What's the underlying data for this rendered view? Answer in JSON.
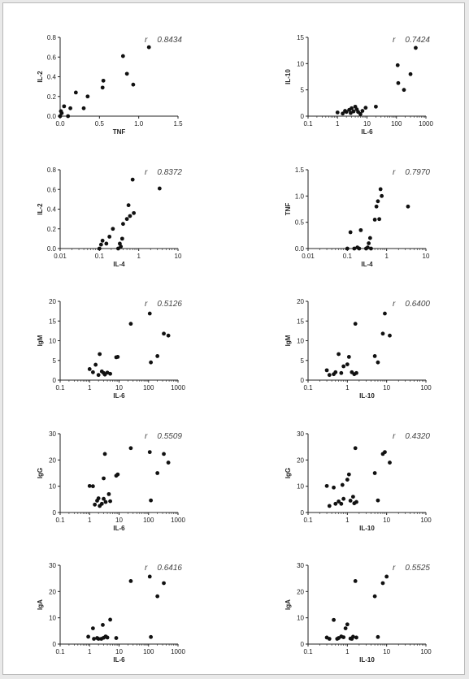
{
  "colors": {
    "frame_border": "#b9b9b9",
    "point": "#111111",
    "axis": "#222222"
  },
  "chart_data": [
    {
      "type": "scatter",
      "xlabel": "TNF",
      "ylabel": "IL-2",
      "xscale": "linear",
      "xlim": [
        0,
        1.5
      ],
      "ylim": [
        0,
        0.8
      ],
      "xticks": [
        "0.0",
        "0.5",
        "1.0",
        "1.5"
      ],
      "yticks": [
        "0.0",
        "0.2",
        "0.4",
        "0.6",
        "0.8"
      ],
      "yticks_values": [
        0,
        0.2,
        0.4,
        0.6,
        0.8
      ],
      "xticks_values": [
        0,
        0.5,
        1.0,
        1.5
      ],
      "r_label": "r",
      "r_value": "0.8434",
      "points": [
        [
          0.0,
          0.0
        ],
        [
          0.01,
          0.05
        ],
        [
          0.02,
          0.03
        ],
        [
          0.05,
          0.1
        ],
        [
          0.1,
          0.0
        ],
        [
          0.13,
          0.08
        ],
        [
          0.2,
          0.24
        ],
        [
          0.3,
          0.08
        ],
        [
          0.35,
          0.2
        ],
        [
          0.54,
          0.29
        ],
        [
          0.55,
          0.36
        ],
        [
          0.8,
          0.61
        ],
        [
          0.85,
          0.43
        ],
        [
          0.93,
          0.32
        ],
        [
          1.13,
          0.7
        ]
      ]
    },
    {
      "type": "scatter",
      "xlabel": "IL-6",
      "ylabel": "IL-10",
      "xscale": "log",
      "xlim": [
        0.1,
        1000
      ],
      "ylim": [
        0,
        15
      ],
      "xticks": [
        "0.1",
        "1",
        "10",
        "100",
        "1000"
      ],
      "yticks": [
        "0",
        "5",
        "10",
        "15"
      ],
      "yticks_values": [
        0,
        5,
        10,
        15
      ],
      "xticks_values": [
        0.1,
        1,
        10,
        100,
        1000
      ],
      "r_label": "r",
      "r_value": "0.7424",
      "points": [
        [
          1,
          0.7
        ],
        [
          1.5,
          0.5
        ],
        [
          1.8,
          1.0
        ],
        [
          2,
          0.8
        ],
        [
          2.5,
          1.2
        ],
        [
          2.8,
          0.6
        ],
        [
          3,
          1.5
        ],
        [
          3.5,
          0.9
        ],
        [
          4,
          1.8
        ],
        [
          4.5,
          1.3
        ],
        [
          5,
          0.8
        ],
        [
          6,
          0.4
        ],
        [
          7,
          1.0
        ],
        [
          9,
          1.6
        ],
        [
          20,
          1.8
        ],
        [
          110,
          9.7
        ],
        [
          115,
          6.3
        ],
        [
          180,
          5.0
        ],
        [
          300,
          8.0
        ],
        [
          450,
          13.0
        ]
      ]
    },
    {
      "type": "scatter",
      "xlabel": "IL-4",
      "ylabel": "IL-2",
      "xscale": "log",
      "xlim": [
        0.01,
        10
      ],
      "ylim": [
        0,
        0.8
      ],
      "xticks": [
        "0.01",
        "0.1",
        "1",
        "10"
      ],
      "yticks": [
        "0.0",
        "0.2",
        "0.4",
        "0.6",
        "0.8"
      ],
      "yticks_values": [
        0,
        0.2,
        0.4,
        0.6,
        0.8
      ],
      "xticks_values": [
        0.01,
        0.1,
        1,
        10
      ],
      "r_label": "r",
      "r_value": "0.8372",
      "points": [
        [
          0.1,
          0.0
        ],
        [
          0.11,
          0.04
        ],
        [
          0.12,
          0.08
        ],
        [
          0.15,
          0.05
        ],
        [
          0.18,
          0.12
        ],
        [
          0.22,
          0.2
        ],
        [
          0.3,
          0.0
        ],
        [
          0.33,
          0.05
        ],
        [
          0.35,
          0.02
        ],
        [
          0.38,
          0.1
        ],
        [
          0.4,
          0.25
        ],
        [
          0.5,
          0.3
        ],
        [
          0.55,
          0.44
        ],
        [
          0.6,
          0.33
        ],
        [
          0.7,
          0.7
        ],
        [
          0.75,
          0.36
        ],
        [
          3.4,
          0.61
        ]
      ]
    },
    {
      "type": "scatter",
      "xlabel": "IL-4",
      "ylabel": "TNF",
      "xscale": "log",
      "xlim": [
        0.01,
        10
      ],
      "ylim": [
        0,
        1.5
      ],
      "xticks": [
        "0.01",
        "0.1",
        "1",
        "10"
      ],
      "yticks": [
        "0.0",
        "0.5",
        "1.0",
        "1.5"
      ],
      "yticks_values": [
        0,
        0.5,
        1.0,
        1.5
      ],
      "xticks_values": [
        0.01,
        0.1,
        1,
        10
      ],
      "r_label": "r",
      "r_value": "0.7970",
      "points": [
        [
          0.1,
          0.0
        ],
        [
          0.12,
          0.31
        ],
        [
          0.15,
          0.0
        ],
        [
          0.18,
          0.02
        ],
        [
          0.2,
          0.0
        ],
        [
          0.22,
          0.35
        ],
        [
          0.3,
          0.0
        ],
        [
          0.33,
          0.02
        ],
        [
          0.35,
          0.1
        ],
        [
          0.38,
          0.2
        ],
        [
          0.4,
          0.0
        ],
        [
          0.5,
          0.55
        ],
        [
          0.55,
          0.8
        ],
        [
          0.6,
          0.9
        ],
        [
          0.65,
          0.56
        ],
        [
          0.7,
          1.13
        ],
        [
          0.75,
          1.0
        ],
        [
          3.5,
          0.8
        ]
      ]
    },
    {
      "type": "scatter",
      "xlabel": "IL-6",
      "ylabel": "IgM",
      "xscale": "log",
      "xlim": [
        0.1,
        1000
      ],
      "ylim": [
        0,
        20
      ],
      "xticks": [
        "0.1",
        "1",
        "10",
        "100",
        "1000"
      ],
      "yticks": [
        "0",
        "5",
        "10",
        "15",
        "20"
      ],
      "yticks_values": [
        0,
        5,
        10,
        15,
        20
      ],
      "xticks_values": [
        0.1,
        1,
        10,
        100,
        1000
      ],
      "r_label": "r",
      "r_value": "0.5126",
      "points": [
        [
          1,
          2.8
        ],
        [
          1.3,
          2.0
        ],
        [
          1.6,
          3.9
        ],
        [
          2,
          1.3
        ],
        [
          2.2,
          6.6
        ],
        [
          2.6,
          2.2
        ],
        [
          3,
          1.8
        ],
        [
          3.3,
          1.4
        ],
        [
          4,
          1.9
        ],
        [
          5,
          1.6
        ],
        [
          8,
          5.8
        ],
        [
          9,
          5.9
        ],
        [
          25,
          14.3
        ],
        [
          110,
          16.9
        ],
        [
          120,
          4.5
        ],
        [
          200,
          6.1
        ],
        [
          330,
          11.8
        ],
        [
          470,
          11.3
        ]
      ]
    },
    {
      "type": "scatter",
      "xlabel": "IL-10",
      "ylabel": "IgM",
      "xscale": "log",
      "xlim": [
        0.1,
        100
      ],
      "ylim": [
        0,
        20
      ],
      "xticks": [
        "0.1",
        "1",
        "10",
        "100"
      ],
      "yticks": [
        "0",
        "5",
        "10",
        "15",
        "20"
      ],
      "yticks_values": [
        0,
        5,
        10,
        15,
        20
      ],
      "xticks_values": [
        0.1,
        1,
        10,
        100
      ],
      "r_label": "r",
      "r_value": "0.6400",
      "points": [
        [
          0.3,
          2.5
        ],
        [
          0.35,
          1.3
        ],
        [
          0.45,
          1.5
        ],
        [
          0.5,
          2.0
        ],
        [
          0.6,
          6.6
        ],
        [
          0.7,
          1.8
        ],
        [
          0.8,
          3.5
        ],
        [
          1,
          4.0
        ],
        [
          1.1,
          5.9
        ],
        [
          1.3,
          2.0
        ],
        [
          1.5,
          1.5
        ],
        [
          1.6,
          14.3
        ],
        [
          1.7,
          1.8
        ],
        [
          5,
          6.1
        ],
        [
          6,
          4.5
        ],
        [
          8,
          11.8
        ],
        [
          9,
          16.9
        ],
        [
          12,
          11.3
        ]
      ]
    },
    {
      "type": "scatter",
      "xlabel": "IL-6",
      "ylabel": "IgG",
      "xscale": "log",
      "xlim": [
        0.1,
        1000
      ],
      "ylim": [
        0,
        30
      ],
      "xticks": [
        "0.1",
        "1",
        "10",
        "100",
        "1000"
      ],
      "yticks": [
        "0",
        "10",
        "20",
        "30"
      ],
      "yticks_values": [
        0,
        10,
        20,
        30
      ],
      "xticks_values": [
        0.1,
        1,
        10,
        100,
        1000
      ],
      "r_label": "r",
      "r_value": "0.5509",
      "points": [
        [
          1,
          10.1
        ],
        [
          1.3,
          10.0
        ],
        [
          1.5,
          3.0
        ],
        [
          1.8,
          4.5
        ],
        [
          2,
          5.4
        ],
        [
          2.2,
          2.5
        ],
        [
          2.6,
          3.3
        ],
        [
          3,
          5.2
        ],
        [
          3,
          13.0
        ],
        [
          3.3,
          22.3
        ],
        [
          3.5,
          4.0
        ],
        [
          4.5,
          7.0
        ],
        [
          5,
          4.3
        ],
        [
          8,
          14.0
        ],
        [
          9,
          14.5
        ],
        [
          25,
          24.5
        ],
        [
          110,
          23.0
        ],
        [
          120,
          4.6
        ],
        [
          200,
          15.0
        ],
        [
          330,
          22.3
        ],
        [
          470,
          19.0
        ]
      ]
    },
    {
      "type": "scatter",
      "xlabel": "IL-10",
      "ylabel": "IgG",
      "xscale": "log",
      "xlim": [
        0.1,
        100
      ],
      "ylim": [
        0,
        30
      ],
      "xticks": [
        "0.1",
        "1",
        "10",
        "100"
      ],
      "yticks": [
        "0",
        "10",
        "20",
        "30"
      ],
      "yticks_values": [
        0,
        10,
        20,
        30
      ],
      "xticks_values": [
        0.1,
        1,
        10,
        100
      ],
      "r_label": "r",
      "r_value": "0.4320",
      "points": [
        [
          0.3,
          10.1
        ],
        [
          0.35,
          2.5
        ],
        [
          0.45,
          9.5
        ],
        [
          0.5,
          3.3
        ],
        [
          0.6,
          4.2
        ],
        [
          0.7,
          3.3
        ],
        [
          0.75,
          10.5
        ],
        [
          0.8,
          5.2
        ],
        [
          1,
          12.5
        ],
        [
          1.1,
          14.5
        ],
        [
          1.2,
          4.5
        ],
        [
          1.4,
          6.0
        ],
        [
          1.5,
          3.5
        ],
        [
          1.6,
          24.5
        ],
        [
          1.7,
          4.0
        ],
        [
          5,
          15.0
        ],
        [
          6,
          4.6
        ],
        [
          8,
          22.3
        ],
        [
          9,
          23.0
        ],
        [
          12,
          19.0
        ]
      ]
    },
    {
      "type": "scatter",
      "xlabel": "IL-6",
      "ylabel": "IgA",
      "xscale": "log",
      "xlim": [
        0.1,
        1000
      ],
      "ylim": [
        0,
        30
      ],
      "xticks": [
        "0.1",
        "1",
        "10",
        "100",
        "1000"
      ],
      "yticks": [
        "0",
        "10",
        "20",
        "30"
      ],
      "yticks_values": [
        0,
        10,
        20,
        30
      ],
      "xticks_values": [
        0.1,
        1,
        10,
        100,
        1000
      ],
      "r_label": "r",
      "r_value": "0.6416",
      "points": [
        [
          0.9,
          2.8
        ],
        [
          1.3,
          6.0
        ],
        [
          1.4,
          2.0
        ],
        [
          1.8,
          2.3
        ],
        [
          2,
          2.0
        ],
        [
          2.5,
          2.0
        ],
        [
          2.8,
          7.3
        ],
        [
          3,
          2.4
        ],
        [
          3.5,
          2.9
        ],
        [
          4,
          2.5
        ],
        [
          5,
          9.3
        ],
        [
          8,
          2.3
        ],
        [
          25,
          24.0
        ],
        [
          110,
          25.7
        ],
        [
          120,
          2.7
        ],
        [
          200,
          18.2
        ],
        [
          330,
          23.2
        ]
      ]
    },
    {
      "type": "scatter",
      "xlabel": "IL-10",
      "ylabel": "IgA",
      "xscale": "log",
      "xlim": [
        0.1,
        100
      ],
      "ylim": [
        0,
        30
      ],
      "xticks": [
        "0.1",
        "1",
        "10",
        "100"
      ],
      "yticks": [
        "0",
        "10",
        "20",
        "30"
      ],
      "yticks_values": [
        0,
        10,
        20,
        30
      ],
      "xticks_values": [
        0.1,
        1,
        10,
        100
      ],
      "r_label": "r",
      "r_value": "0.5525",
      "points": [
        [
          0.3,
          2.5
        ],
        [
          0.35,
          2.0
        ],
        [
          0.45,
          9.2
        ],
        [
          0.55,
          2.0
        ],
        [
          0.6,
          2.3
        ],
        [
          0.7,
          2.9
        ],
        [
          0.8,
          2.6
        ],
        [
          0.9,
          6.0
        ],
        [
          1,
          7.5
        ],
        [
          1.2,
          2.1
        ],
        [
          1.3,
          2.0
        ],
        [
          1.4,
          2.8
        ],
        [
          1.6,
          24.0
        ],
        [
          1.7,
          2.5
        ],
        [
          5,
          18.2
        ],
        [
          6,
          2.7
        ],
        [
          8,
          23.2
        ],
        [
          10,
          25.7
        ]
      ]
    }
  ]
}
